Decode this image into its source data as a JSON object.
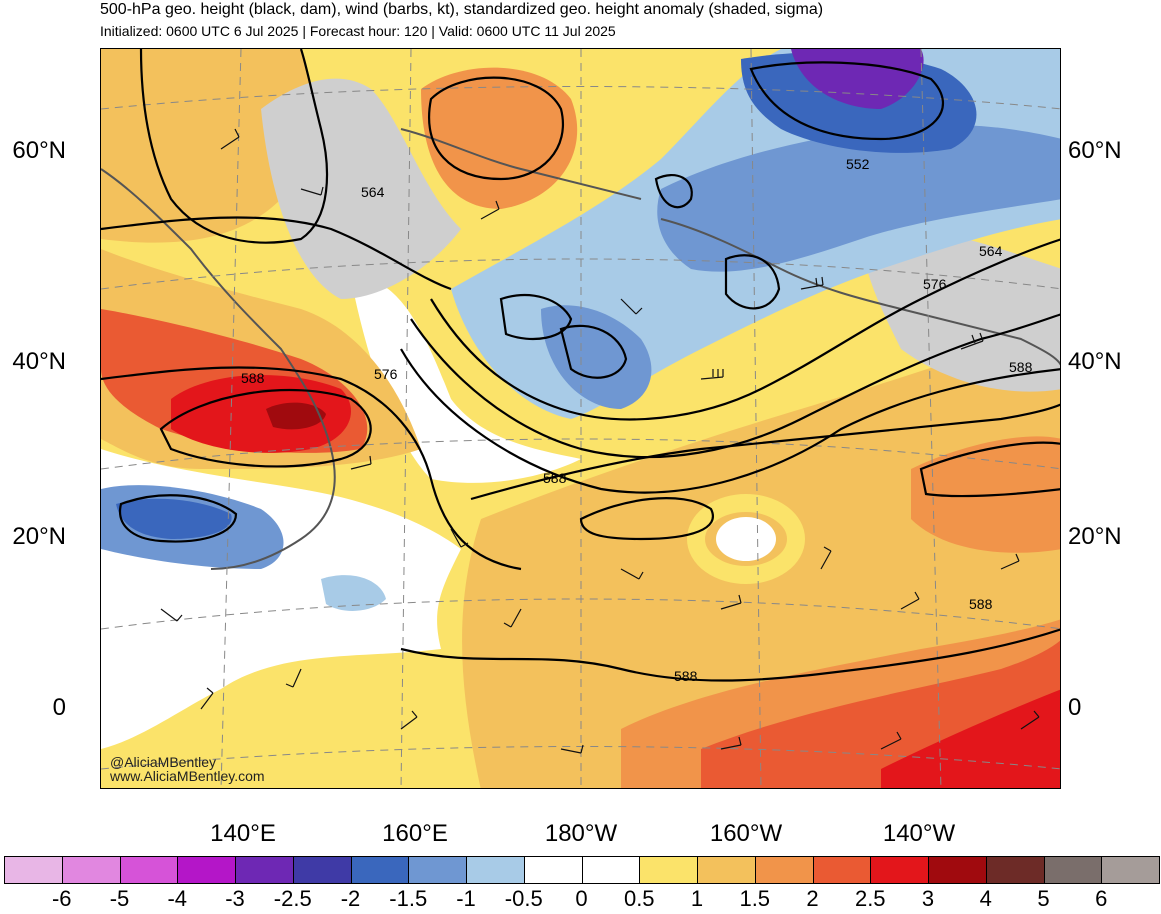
{
  "header": {
    "title": "500-hPa geo. height (black, dam), wind (barbs, kt), standardized geo. height anomaly (shaded, sigma)",
    "subtitle": "Initialized: 0600 UTC 6 Jul 2025 | Forecast hour: 120 | Valid: 0600 UTC 11 Jul 2025"
  },
  "axes": {
    "lat_labels_left": [
      "60°N",
      "40°N",
      "20°N",
      "0"
    ],
    "lat_labels_right": [
      "60°N",
      "40°N",
      "20°N",
      "0"
    ],
    "lon_labels": [
      "140°E",
      "160°E",
      "180°W",
      "160°W",
      "140°W"
    ]
  },
  "contour_labels": [
    "564",
    "552",
    "564",
    "576",
    "576",
    "588",
    "588",
    "588",
    "588",
    "588"
  ],
  "credit": {
    "handle": "@AliciaMBentley",
    "site": "www.AliciaMBentley.com"
  },
  "colorbar": {
    "colors": [
      "#e8b6e6",
      "#e187e0",
      "#d653d8",
      "#b416c8",
      "#6e28b4",
      "#3f3aa6",
      "#3a67bd",
      "#6f97d2",
      "#a8cbe7",
      "#ffffff",
      "#ffffff",
      "#fbe36a",
      "#f3c15c",
      "#f1944a",
      "#ea5a33",
      "#e3161b",
      "#a00a0e",
      "#6d2b27",
      "#7a6e6b",
      "#a59c99"
    ],
    "labels": [
      "-6",
      "-5",
      "-4",
      "-3",
      "-2.5",
      "-2",
      "-1.5",
      "-1",
      "-0.5",
      "0",
      "0.5",
      "1",
      "1.5",
      "2",
      "2.5",
      "3",
      "4",
      "5",
      "6"
    ]
  },
  "map_colors": {
    "land": "#555555",
    "gray_anomaly": "#cfcfcf"
  }
}
